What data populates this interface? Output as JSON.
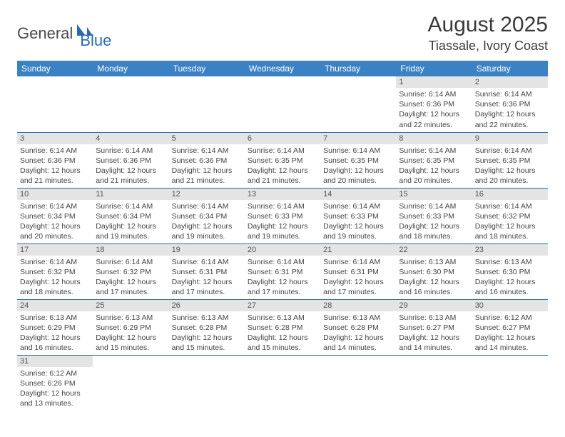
{
  "logo": {
    "part1": "General",
    "part2": "Blue"
  },
  "title": "August 2025",
  "location": "Tiassale, Ivory Coast",
  "colors": {
    "header_bg": "#3b82c4",
    "header_text": "#ffffff",
    "daynum_bg": "#e4e4e4",
    "border": "#2a6bb0",
    "logo_gray": "#4a4a4a",
    "logo_blue": "#2a6bb0"
  },
  "weekdays": [
    "Sunday",
    "Monday",
    "Tuesday",
    "Wednesday",
    "Thursday",
    "Friday",
    "Saturday"
  ],
  "weeks": [
    [
      null,
      null,
      null,
      null,
      null,
      {
        "n": "1",
        "sr": "6:14 AM",
        "ss": "6:36 PM",
        "dl": "12 hours and 22 minutes."
      },
      {
        "n": "2",
        "sr": "6:14 AM",
        "ss": "6:36 PM",
        "dl": "12 hours and 22 minutes."
      }
    ],
    [
      {
        "n": "3",
        "sr": "6:14 AM",
        "ss": "6:36 PM",
        "dl": "12 hours and 21 minutes."
      },
      {
        "n": "4",
        "sr": "6:14 AM",
        "ss": "6:36 PM",
        "dl": "12 hours and 21 minutes."
      },
      {
        "n": "5",
        "sr": "6:14 AM",
        "ss": "6:36 PM",
        "dl": "12 hours and 21 minutes."
      },
      {
        "n": "6",
        "sr": "6:14 AM",
        "ss": "6:35 PM",
        "dl": "12 hours and 21 minutes."
      },
      {
        "n": "7",
        "sr": "6:14 AM",
        "ss": "6:35 PM",
        "dl": "12 hours and 20 minutes."
      },
      {
        "n": "8",
        "sr": "6:14 AM",
        "ss": "6:35 PM",
        "dl": "12 hours and 20 minutes."
      },
      {
        "n": "9",
        "sr": "6:14 AM",
        "ss": "6:35 PM",
        "dl": "12 hours and 20 minutes."
      }
    ],
    [
      {
        "n": "10",
        "sr": "6:14 AM",
        "ss": "6:34 PM",
        "dl": "12 hours and 20 minutes."
      },
      {
        "n": "11",
        "sr": "6:14 AM",
        "ss": "6:34 PM",
        "dl": "12 hours and 19 minutes."
      },
      {
        "n": "12",
        "sr": "6:14 AM",
        "ss": "6:34 PM",
        "dl": "12 hours and 19 minutes."
      },
      {
        "n": "13",
        "sr": "6:14 AM",
        "ss": "6:33 PM",
        "dl": "12 hours and 19 minutes."
      },
      {
        "n": "14",
        "sr": "6:14 AM",
        "ss": "6:33 PM",
        "dl": "12 hours and 19 minutes."
      },
      {
        "n": "15",
        "sr": "6:14 AM",
        "ss": "6:33 PM",
        "dl": "12 hours and 18 minutes."
      },
      {
        "n": "16",
        "sr": "6:14 AM",
        "ss": "6:32 PM",
        "dl": "12 hours and 18 minutes."
      }
    ],
    [
      {
        "n": "17",
        "sr": "6:14 AM",
        "ss": "6:32 PM",
        "dl": "12 hours and 18 minutes."
      },
      {
        "n": "18",
        "sr": "6:14 AM",
        "ss": "6:32 PM",
        "dl": "12 hours and 17 minutes."
      },
      {
        "n": "19",
        "sr": "6:14 AM",
        "ss": "6:31 PM",
        "dl": "12 hours and 17 minutes."
      },
      {
        "n": "20",
        "sr": "6:14 AM",
        "ss": "6:31 PM",
        "dl": "12 hours and 17 minutes."
      },
      {
        "n": "21",
        "sr": "6:14 AM",
        "ss": "6:31 PM",
        "dl": "12 hours and 17 minutes."
      },
      {
        "n": "22",
        "sr": "6:13 AM",
        "ss": "6:30 PM",
        "dl": "12 hours and 16 minutes."
      },
      {
        "n": "23",
        "sr": "6:13 AM",
        "ss": "6:30 PM",
        "dl": "12 hours and 16 minutes."
      }
    ],
    [
      {
        "n": "24",
        "sr": "6:13 AM",
        "ss": "6:29 PM",
        "dl": "12 hours and 16 minutes."
      },
      {
        "n": "25",
        "sr": "6:13 AM",
        "ss": "6:29 PM",
        "dl": "12 hours and 15 minutes."
      },
      {
        "n": "26",
        "sr": "6:13 AM",
        "ss": "6:28 PM",
        "dl": "12 hours and 15 minutes."
      },
      {
        "n": "27",
        "sr": "6:13 AM",
        "ss": "6:28 PM",
        "dl": "12 hours and 15 minutes."
      },
      {
        "n": "28",
        "sr": "6:13 AM",
        "ss": "6:28 PM",
        "dl": "12 hours and 14 minutes."
      },
      {
        "n": "29",
        "sr": "6:13 AM",
        "ss": "6:27 PM",
        "dl": "12 hours and 14 minutes."
      },
      {
        "n": "30",
        "sr": "6:12 AM",
        "ss": "6:27 PM",
        "dl": "12 hours and 14 minutes."
      }
    ],
    [
      {
        "n": "31",
        "sr": "6:12 AM",
        "ss": "6:26 PM",
        "dl": "12 hours and 13 minutes."
      },
      null,
      null,
      null,
      null,
      null,
      null
    ]
  ],
  "labels": {
    "sunrise": "Sunrise:",
    "sunset": "Sunset:",
    "daylight": "Daylight:"
  }
}
